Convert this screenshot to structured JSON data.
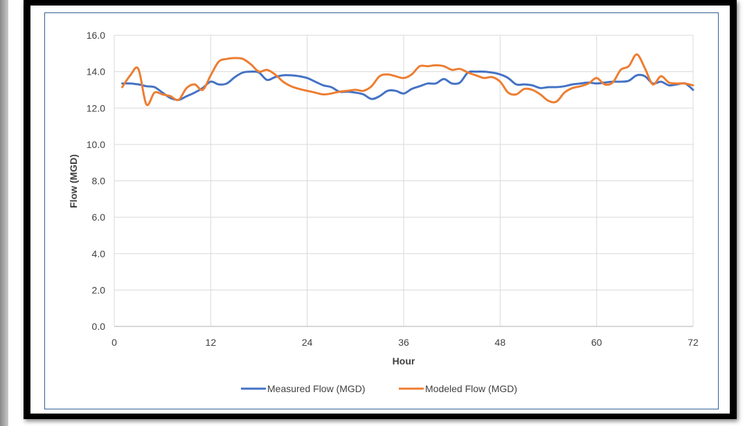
{
  "chart_data": {
    "type": "line",
    "title": "",
    "xlabel": "Hour",
    "ylabel": "Flow (MGD)",
    "xlim": [
      0,
      72
    ],
    "ylim": [
      0,
      16
    ],
    "xticks": [
      0,
      12,
      24,
      36,
      48,
      60,
      72
    ],
    "yticks": [
      "0.0",
      "2.0",
      "4.0",
      "6.0",
      "8.0",
      "10.0",
      "12.0",
      "14.0",
      "16.0"
    ],
    "grid": true,
    "legend": "bottom",
    "series": [
      {
        "name": "Measured Flow (MGD)",
        "color": "#4472c4",
        "x": [
          1,
          2,
          3,
          4,
          5,
          6,
          7,
          8,
          9,
          10,
          11,
          12,
          13,
          14,
          15,
          16,
          17,
          18,
          19,
          20,
          21,
          22,
          23,
          24,
          25,
          26,
          27,
          28,
          29,
          30,
          31,
          32,
          33,
          34,
          35,
          36,
          37,
          38,
          39,
          40,
          41,
          42,
          43,
          44,
          45,
          46,
          47,
          48,
          49,
          50,
          51,
          52,
          53,
          54,
          55,
          56,
          57,
          58,
          59,
          60,
          61,
          62,
          63,
          64,
          65,
          66,
          67,
          68,
          69,
          70,
          71,
          72
        ],
        "values": [
          13.35,
          13.35,
          13.3,
          13.2,
          13.15,
          12.85,
          12.55,
          12.45,
          12.65,
          12.85,
          13.1,
          13.45,
          13.3,
          13.35,
          13.7,
          13.95,
          14.0,
          13.95,
          13.55,
          13.7,
          13.8,
          13.8,
          13.75,
          13.65,
          13.45,
          13.25,
          13.15,
          12.9,
          12.9,
          12.85,
          12.75,
          12.5,
          12.65,
          12.95,
          12.95,
          12.8,
          13.05,
          13.2,
          13.35,
          13.35,
          13.6,
          13.35,
          13.4,
          13.95,
          14.0,
          14.0,
          13.95,
          13.85,
          13.65,
          13.3,
          13.3,
          13.25,
          13.1,
          13.15,
          13.15,
          13.2,
          13.3,
          13.35,
          13.4,
          13.35,
          13.4,
          13.45,
          13.45,
          13.5,
          13.8,
          13.75,
          13.35,
          13.45,
          13.25,
          13.3,
          13.35,
          13.0
        ]
      },
      {
        "name": "Modeled Flow (MGD)",
        "color": "#ed7d31",
        "x": [
          1,
          2,
          3,
          4,
          5,
          6,
          7,
          8,
          9,
          10,
          11,
          12,
          13,
          14,
          15,
          16,
          17,
          18,
          19,
          20,
          21,
          22,
          23,
          24,
          25,
          26,
          27,
          28,
          29,
          30,
          31,
          32,
          33,
          34,
          35,
          36,
          37,
          38,
          39,
          40,
          41,
          42,
          43,
          44,
          45,
          46,
          47,
          48,
          49,
          50,
          51,
          52,
          53,
          54,
          55,
          56,
          57,
          58,
          59,
          60,
          61,
          62,
          63,
          64,
          65,
          66,
          67,
          68,
          69,
          70,
          71,
          72
        ],
        "values": [
          13.15,
          13.8,
          14.15,
          12.2,
          12.85,
          12.75,
          12.65,
          12.45,
          13.1,
          13.3,
          13.0,
          13.8,
          14.55,
          14.7,
          14.75,
          14.7,
          14.4,
          14.0,
          14.1,
          13.85,
          13.45,
          13.2,
          13.05,
          12.95,
          12.85,
          12.75,
          12.8,
          12.9,
          12.95,
          13.0,
          12.95,
          13.2,
          13.75,
          13.85,
          13.75,
          13.65,
          13.85,
          14.3,
          14.3,
          14.35,
          14.3,
          14.1,
          14.15,
          13.95,
          13.8,
          13.65,
          13.7,
          13.45,
          12.85,
          12.75,
          13.05,
          13.0,
          12.75,
          12.4,
          12.35,
          12.85,
          13.1,
          13.2,
          13.35,
          13.65,
          13.3,
          13.4,
          14.1,
          14.3,
          14.95,
          14.2,
          13.3,
          13.75,
          13.4,
          13.35,
          13.35,
          13.25
        ]
      }
    ]
  }
}
